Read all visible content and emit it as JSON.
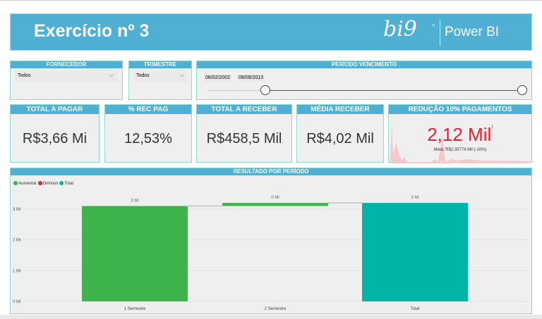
{
  "header": {
    "title": "Exercício nº 3",
    "logo_text": "bi9",
    "logo_tm": "TI",
    "product": "Power BI",
    "color": "#4fb0d3"
  },
  "slicers": {
    "fornecedor": {
      "label": "FORNECEDOR",
      "value": "Todos"
    },
    "trimestre": {
      "label": "TRIMESTRE",
      "value": "Todos"
    },
    "periodo": {
      "label": "PERÍODO VENCIMENTO",
      "start": "06/02/2002",
      "end": "09/09/2013",
      "range_fraction": [
        0.22,
        1.0
      ]
    }
  },
  "kpis": [
    {
      "label": "TOTAL A PAGAR",
      "value": "R$3,66 Mi"
    },
    {
      "label": "% REC PAG",
      "value": "12,53%"
    },
    {
      "label": "TOTAL A RECEBER",
      "value": "R$458,5 Mil"
    },
    {
      "label": "MÉDIA RECEBER",
      "value": "R$4,02 Mil"
    }
  ],
  "kpi_goal": {
    "label": "REDUÇÃO 10% PAGAMENTOS",
    "value": "2,12 Mil",
    "indicator": "!",
    "goal": "Meta: R$2,35774 Mil (-10%)",
    "color": "#e8212e"
  },
  "chart_data": {
    "type": "waterfall",
    "title": "RESULTADO POR PERÍODO",
    "legend": [
      {
        "name": "Aumentar",
        "color": "#3cb44b"
      },
      {
        "name": "Diminuir",
        "color": "#e8212e"
      },
      {
        "name": "Total",
        "color": "#00b5a8"
      }
    ],
    "legend_position": "top-left",
    "categories": [
      "1 Semestre",
      "2 Semestre",
      "Total"
    ],
    "values": [
      3.1,
      0.1,
      3.2
    ],
    "kinds": [
      "Aumentar",
      "Aumentar",
      "Total"
    ],
    "data_labels": [
      "3 Mi",
      "0 Mi",
      "3 Mi"
    ],
    "y_ticks": [
      "0 Mi",
      "1 Mi",
      "2 Mi",
      "3 Mi"
    ],
    "ylim": [
      0,
      3.4
    ],
    "grid": true
  }
}
